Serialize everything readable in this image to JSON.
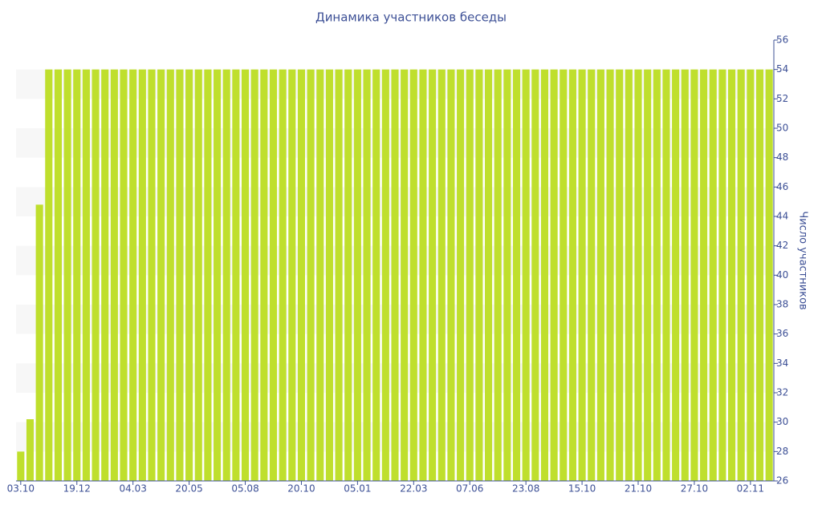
{
  "chart_data": {
    "type": "bar",
    "title": "Динамика участников беседы",
    "y_label": "Число участников",
    "y_axis_side": "right",
    "grid": "bands",
    "color": "#bfdf2d",
    "band_color": "#f7f7f7",
    "text_color": "#3d5096",
    "categories": [
      "03.10",
      null,
      null,
      null,
      null,
      null,
      "19.12",
      null,
      null,
      null,
      null,
      null,
      "04.03",
      null,
      null,
      null,
      null,
      null,
      "20.05",
      null,
      null,
      null,
      null,
      null,
      "05.08",
      null,
      null,
      null,
      null,
      null,
      "20.10",
      null,
      null,
      null,
      null,
      null,
      "05.01",
      null,
      null,
      null,
      null,
      null,
      "22.03",
      null,
      null,
      null,
      null,
      null,
      "07.06",
      null,
      null,
      null,
      null,
      null,
      "23.08",
      null,
      null,
      null,
      null,
      null,
      "15.10",
      null,
      null,
      null,
      null,
      null,
      "21.10",
      null,
      null,
      null,
      null,
      null,
      "27.10",
      null,
      null,
      null,
      null,
      null,
      "02.11",
      null,
      null
    ],
    "values": [
      28,
      30.2,
      44.8,
      54,
      54,
      54,
      54,
      54,
      54,
      54,
      54,
      54,
      54,
      54,
      54,
      54,
      54,
      54,
      54,
      54,
      54,
      54,
      54,
      54,
      54,
      54,
      54,
      54,
      54,
      54,
      54,
      54,
      54,
      54,
      54,
      54,
      54,
      54,
      54,
      54,
      54,
      54,
      54,
      54,
      54,
      54,
      54,
      54,
      54,
      54,
      54,
      54,
      54,
      54,
      54,
      54,
      54,
      54,
      54,
      54,
      54,
      54,
      54,
      54,
      54,
      54,
      54,
      54,
      54,
      54,
      54,
      54,
      54,
      54,
      54,
      54,
      54,
      54,
      54,
      54,
      54
    ],
    "ylim": [
      26,
      56
    ],
    "yticks": [
      26,
      28,
      30,
      32,
      34,
      36,
      38,
      40,
      42,
      44,
      46,
      48,
      50,
      52,
      54,
      56
    ]
  }
}
